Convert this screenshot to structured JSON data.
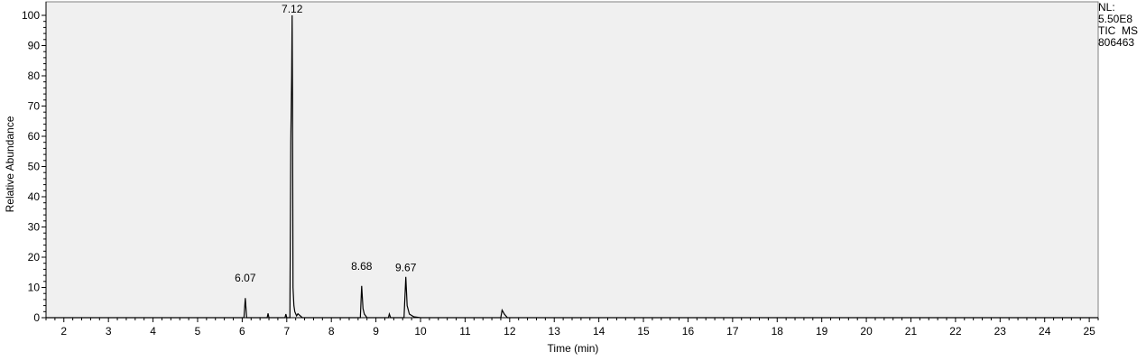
{
  "info_box": {
    "nl_label": "NL:",
    "nl_value": "5.50E8",
    "scan_filter": "TIC  MS",
    "file_id": "806463"
  },
  "chart_data": {
    "type": "line",
    "title": "",
    "xlabel": "Time (min)",
    "ylabel": "Relative Abundance",
    "xlim": [
      1.6,
      25.2
    ],
    "ylim": [
      0,
      100
    ],
    "x_ticks": [
      2,
      3,
      4,
      5,
      6,
      7,
      8,
      9,
      10,
      11,
      12,
      13,
      14,
      15,
      16,
      17,
      18,
      19,
      20,
      21,
      22,
      23,
      24,
      25
    ],
    "y_ticks": [
      0,
      10,
      20,
      30,
      40,
      50,
      60,
      70,
      80,
      90,
      100
    ],
    "grid": false,
    "legend": "none",
    "background_color": "#f0f0f0",
    "line_color": "#000000",
    "series": [
      {
        "x": [
          1.6,
          6.04,
          6.07,
          6.1,
          6.56,
          6.58,
          6.6,
          6.96,
          6.98,
          7.0,
          7.07,
          7.09,
          7.11,
          7.12,
          7.13,
          7.14,
          7.16,
          7.18,
          7.22,
          7.25,
          7.35,
          8.65,
          8.68,
          8.71,
          8.74,
          8.8,
          9.28,
          9.3,
          9.33,
          9.63,
          9.67,
          9.7,
          9.75,
          9.85,
          10.0,
          11.8,
          11.83,
          11.88,
          11.95,
          25.2
        ],
        "y": [
          0,
          0,
          6.5,
          0,
          0,
          1.4,
          0,
          0,
          1.2,
          0,
          0,
          58,
          80,
          100,
          70,
          10,
          4,
          2,
          0.6,
          1.3,
          0,
          0,
          10.5,
          3,
          1.2,
          0,
          0,
          1.2,
          0,
          0,
          13.5,
          4,
          1.2,
          0.3,
          0,
          0,
          2.5,
          1.2,
          0,
          0
        ]
      }
    ],
    "peak_labels": [
      {
        "label": "6.07",
        "x": 6.07,
        "y": 11
      },
      {
        "label": "7.12",
        "x": 7.12,
        "y": 100
      },
      {
        "label": "8.68",
        "x": 8.68,
        "y": 15
      },
      {
        "label": "9.67",
        "x": 9.67,
        "y": 14.5
      }
    ]
  }
}
